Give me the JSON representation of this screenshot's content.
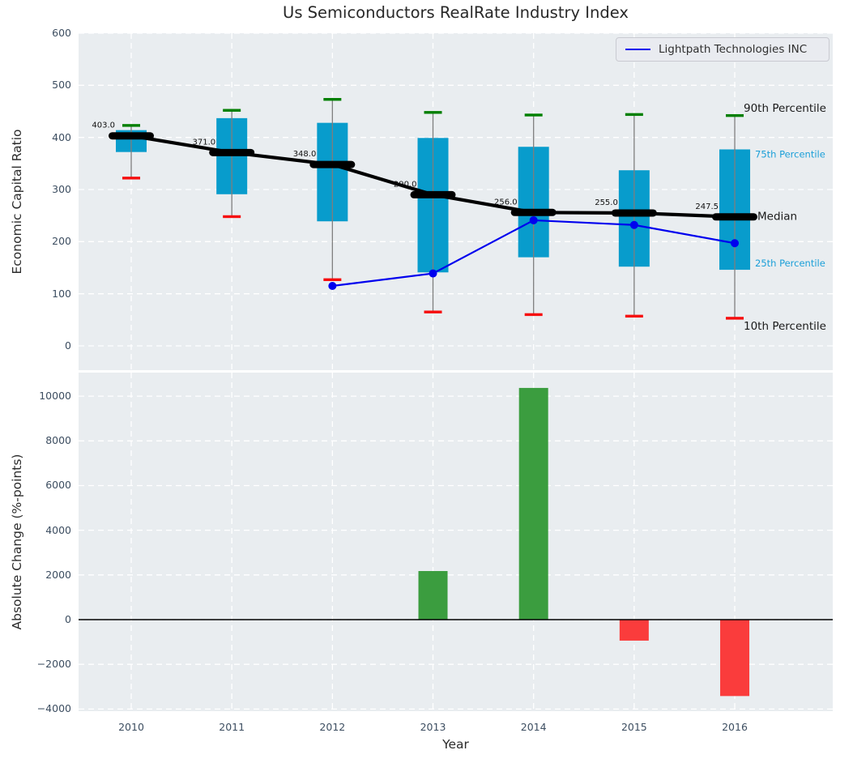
{
  "title": "Us Semiconductors RealRate Industry Index",
  "legend": {
    "label": "Lightpath Technologies INC",
    "line_color": "#0000ee"
  },
  "axes": {
    "top_ylabel": "Economic Capital Ratio",
    "bottom_ylabel": "Absolute Change (%-points)",
    "xlabel": "Year"
  },
  "colors": {
    "plot_bg": "#e9edf0",
    "grid": "#ffffff",
    "box": "#089ccc",
    "whisker": "#7e7e7e",
    "median": "#000000",
    "p90_cap": "#007f00",
    "p10_cap": "#f60d0d",
    "company_line": "#0000ee",
    "bar_positive": "#3b9d3f",
    "bar_negative": "#fa3c3c",
    "tick_text": "#3d4e61",
    "percentile_label_blue": "#1b9fd8"
  },
  "chart_data": [
    {
      "type": "line",
      "subtype": "percentile-band-boxes",
      "title": "Us Semiconductors RealRate Industry Index",
      "ylabel": "Economic Capital Ratio",
      "x": [
        2010,
        2011,
        2012,
        2013,
        2014,
        2015,
        2016
      ],
      "ylim": [
        -46,
        600
      ],
      "yticks": [
        600,
        500,
        400,
        300,
        200,
        100,
        0
      ],
      "grid": true,
      "legend_position": "upper right",
      "series": [
        {
          "name": "90th Percentile",
          "style": "whisker-cap",
          "color": "#007f00",
          "values": [
            423,
            452,
            473,
            448,
            443,
            444,
            442
          ]
        },
        {
          "name": "75th Percentile",
          "style": "box-top",
          "color": "#089ccc",
          "values": [
            414,
            437,
            428,
            399,
            382,
            337,
            377
          ]
        },
        {
          "name": "Median",
          "style": "thick-black-line",
          "color": "#000000",
          "values": [
            403.0,
            371.0,
            348.0,
            290.0,
            256.0,
            255.0,
            247.5
          ]
        },
        {
          "name": "25th Percentile",
          "style": "box-bottom",
          "color": "#089ccc",
          "values": [
            372,
            291,
            239,
            141,
            170,
            152,
            146
          ]
        },
        {
          "name": "10th Percentile",
          "style": "whisker-cap",
          "color": "#f60d0d",
          "values": [
            322,
            248,
            127,
            65,
            60,
            57,
            53
          ]
        },
        {
          "name": "Lightpath Technologies INC",
          "style": "line-markers",
          "color": "#0000ee",
          "values": [
            null,
            null,
            115,
            139,
            241,
            232,
            197
          ]
        }
      ],
      "median_labels": [
        "403.0",
        "371.0",
        "348.0",
        "290.0",
        "256.0",
        "255.0",
        "247.5"
      ],
      "right_annotations": [
        {
          "label": "90th Percentile",
          "value": 457,
          "color": "#1a1a1a",
          "size": 13.5,
          "x": 821
        },
        {
          "label": "75th Percentile",
          "value": 368,
          "color": "#1b9fd8",
          "size": 11.5,
          "x": 835
        },
        {
          "label": "Median",
          "value": 249,
          "color": "#1a1a1a",
          "size": 13.5,
          "x": 838
        },
        {
          "label": "25th Percentile",
          "value": 159,
          "color": "#1b9fd8",
          "size": 11.5,
          "x": 835
        },
        {
          "label": "10th Percentile",
          "value": 39,
          "color": "#1a1a1a",
          "size": 13.5,
          "x": 821
        }
      ]
    },
    {
      "type": "bar",
      "ylabel": "Absolute Change (%-points)",
      "xlabel": "Year",
      "categories": [
        2010,
        2011,
        2012,
        2013,
        2014,
        2015,
        2016
      ],
      "values": [
        0,
        0,
        0,
        2175,
        10370,
        -940,
        -3420
      ],
      "yticks": [
        10000,
        8000,
        6000,
        4000,
        2000,
        0,
        -2000,
        -4000
      ],
      "ylim": [
        -4100,
        11050
      ],
      "grid": true,
      "positive_color": "#3b9d3f",
      "negative_color": "#fa3c3c"
    }
  ]
}
